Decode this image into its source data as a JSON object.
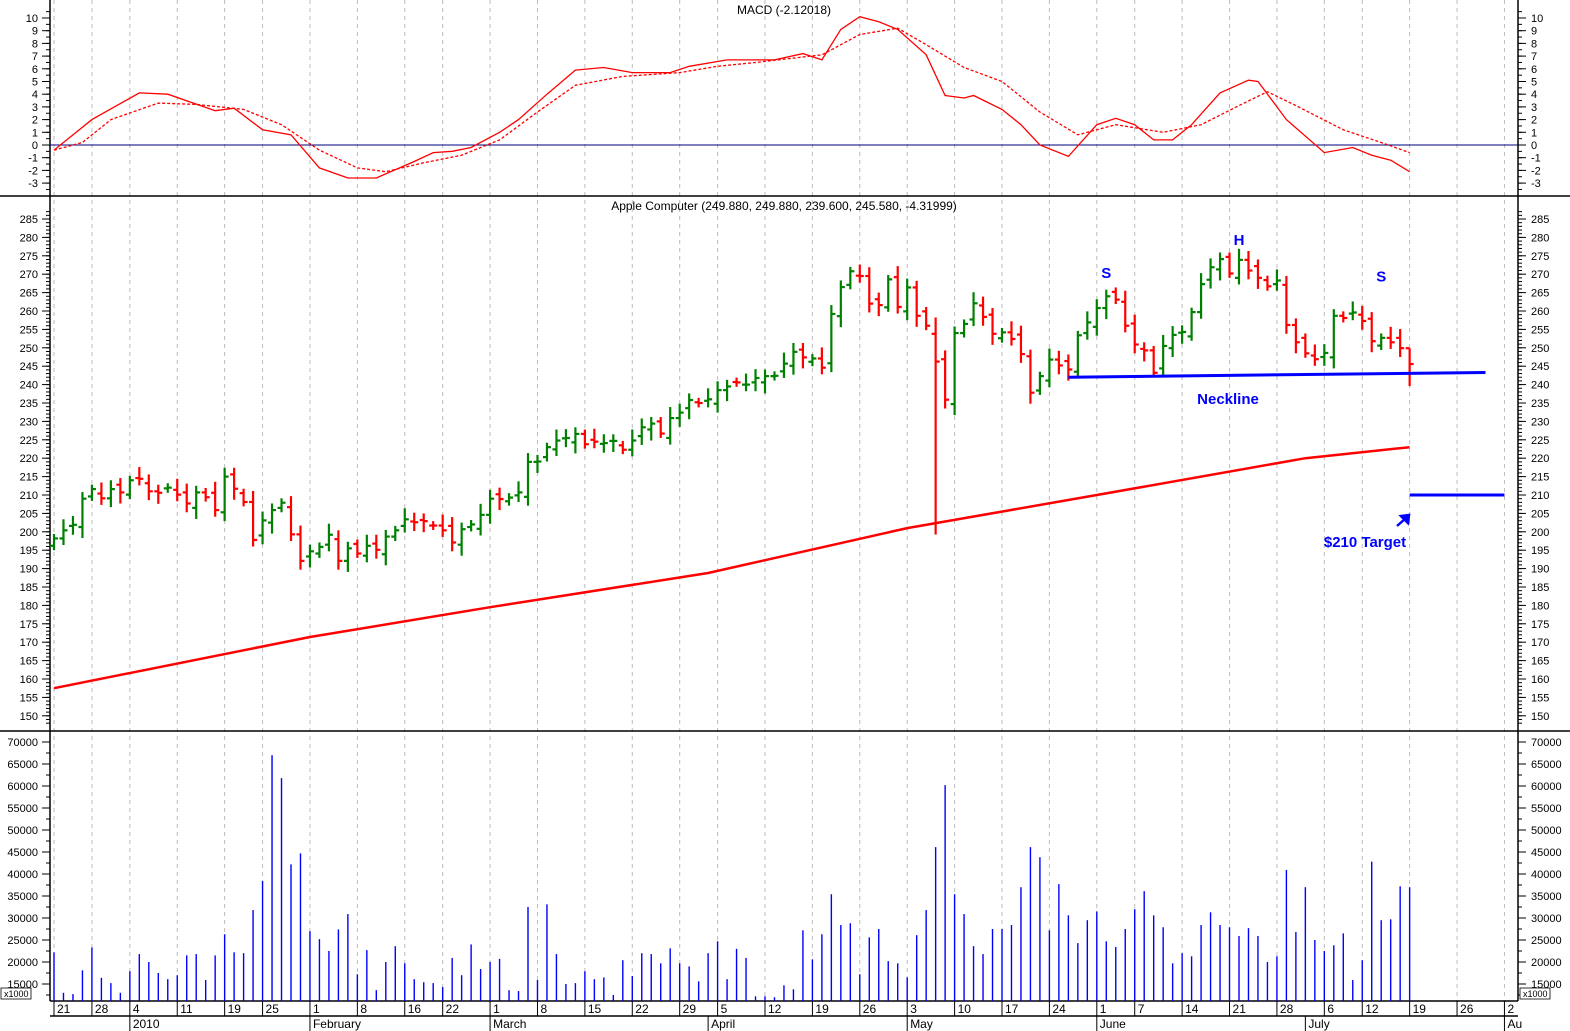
{
  "chart_data": [
    {
      "type": "line",
      "panel": "macd",
      "title": "MACD (-2.12018)",
      "yticks": [
        10,
        9,
        8,
        7,
        6,
        5,
        4,
        3,
        2,
        1,
        0,
        -1,
        -2,
        -3
      ],
      "ylim": [
        -3.6,
        11
      ],
      "zero_line": 0,
      "series": [
        {
          "name": "MACD",
          "style": "solid",
          "color": "#ff0000",
          "points": [
            [
              0,
              -0.4
            ],
            [
              4,
              2
            ],
            [
              9,
              4.1
            ],
            [
              12,
              4
            ],
            [
              17,
              2.7
            ],
            [
              19,
              2.9
            ],
            [
              22,
              1.2
            ],
            [
              25,
              0.8
            ],
            [
              28,
              -1.8
            ],
            [
              31,
              -2.6
            ],
            [
              34,
              -2.6
            ],
            [
              38,
              -1.3
            ],
            [
              40,
              -0.6
            ],
            [
              42,
              -0.5
            ],
            [
              44,
              -0.2
            ],
            [
              47,
              1.0
            ],
            [
              49,
              2
            ],
            [
              52,
              4
            ],
            [
              55,
              5.9
            ],
            [
              58,
              6.1
            ],
            [
              61,
              5.7
            ],
            [
              65,
              5.7
            ],
            [
              67,
              6.2
            ],
            [
              71,
              6.7
            ],
            [
              76,
              6.7
            ],
            [
              79,
              7.2
            ],
            [
              81,
              6.7
            ],
            [
              83,
              9.1
            ],
            [
              85,
              10.1
            ],
            [
              87,
              9.7
            ],
            [
              89,
              9.1
            ],
            [
              92,
              7.1
            ],
            [
              94,
              3.9
            ],
            [
              96,
              3.7
            ],
            [
              97,
              3.9
            ],
            [
              100,
              2.8
            ],
            [
              102,
              1.6
            ],
            [
              104,
              0
            ],
            [
              107,
              -0.9
            ],
            [
              110,
              1.6
            ],
            [
              112,
              2.1
            ],
            [
              114,
              1.6
            ],
            [
              116,
              0.4
            ],
            [
              118,
              0.4
            ],
            [
              120,
              1.6
            ],
            [
              123,
              4.1
            ],
            [
              126,
              5.1
            ],
            [
              127,
              5
            ],
            [
              130,
              2
            ],
            [
              134,
              -0.6
            ],
            [
              137,
              -0.2
            ],
            [
              139,
              -0.8
            ],
            [
              141,
              -1.2
            ],
            [
              143,
              -2.1
            ]
          ]
        },
        {
          "name": "Signal",
          "style": "dashed",
          "color": "#ff0000",
          "points": [
            [
              0,
              -0.4
            ],
            [
              3,
              0.2
            ],
            [
              6,
              2
            ],
            [
              11,
              3.3
            ],
            [
              15,
              3.2
            ],
            [
              20,
              2.8
            ],
            [
              24,
              1.6
            ],
            [
              28,
              -0.4
            ],
            [
              32,
              -1.8
            ],
            [
              35,
              -2.1
            ],
            [
              39,
              -1.4
            ],
            [
              43,
              -0.8
            ],
            [
              47,
              0.4
            ],
            [
              51,
              2.6
            ],
            [
              55,
              4.7
            ],
            [
              60,
              5.4
            ],
            [
              66,
              5.7
            ],
            [
              70,
              6.2
            ],
            [
              74,
              6.5
            ],
            [
              81,
              7.1
            ],
            [
              85,
              8.7
            ],
            [
              89,
              9.2
            ],
            [
              92,
              7.9
            ],
            [
              96,
              6.1
            ],
            [
              100,
              5
            ],
            [
              104,
              2.6
            ],
            [
              108,
              0.8
            ],
            [
              112,
              1.6
            ],
            [
              117,
              1
            ],
            [
              121,
              1.6
            ],
            [
              125,
              3.1
            ],
            [
              128,
              4.2
            ],
            [
              131,
              3.1
            ],
            [
              136,
              1.2
            ],
            [
              140,
              0.2
            ],
            [
              143,
              -0.6
            ]
          ]
        }
      ]
    },
    {
      "type": "ohlc",
      "panel": "price",
      "title": "Apple Computer (249.880, 249.880, 239.600, 245.580, -4.31999)",
      "yticks": [
        285,
        280,
        275,
        270,
        265,
        260,
        255,
        250,
        245,
        240,
        235,
        230,
        225,
        220,
        215,
        210,
        205,
        200,
        195,
        190,
        185,
        180,
        175,
        170,
        165,
        160,
        155,
        150
      ],
      "ylim": [
        148,
        288
      ],
      "up_color": "#008000",
      "down_color": "#ff0000",
      "close": [
        198.2,
        200.4,
        201.9,
        209.0,
        211.6,
        209.1,
        211.6,
        210.7,
        214.0,
        214.4,
        211.0,
        210.6,
        212.0,
        210.1,
        207.7,
        210.7,
        209.4,
        205.9,
        215.0,
        211.7,
        208.1,
        197.8,
        203.1,
        205.9,
        207.9,
        199.3,
        192.1,
        194.7,
        195.9,
        199.2,
        192.1,
        195.5,
        194.1,
        196.2,
        195.1,
        198.7,
        200.4,
        203.4,
        202.6,
        202.9,
        201.7,
        200.4,
        197.1,
        200.7,
        202.0,
        204.6,
        209.0,
        208.9,
        209.3,
        210.7,
        219.0,
        219.1,
        223.0,
        224.8,
        225.5,
        226.6,
        223.8,
        224.5,
        224.1,
        224.7,
        222.3,
        224.8,
        228.4,
        229.4,
        226.7,
        230.9,
        232.4,
        235.8,
        235.0,
        236.0,
        238.5,
        239.5,
        240.6,
        240.0,
        241.8,
        242.3,
        242.4,
        245.7,
        248.9,
        247.4,
        247.1,
        244.6,
        259.2,
        266.5,
        270.8,
        269.5,
        262.0,
        261.6,
        268.6,
        261.1,
        266.4,
        258.7,
        256.0,
        246.3,
        235.9,
        254.0,
        256.5,
        262.1,
        258.4,
        253.8,
        254.2,
        252.4,
        248.3,
        237.8,
        242.3,
        246.8,
        245.2,
        244.1,
        253.4,
        256.9,
        260.8,
        264.0,
        263.1,
        256.0,
        250.9,
        249.3,
        243.2,
        250.5,
        253.5,
        254.3,
        259.7,
        267.3,
        271.9,
        274.1,
        270.2,
        273.9,
        271.0,
        269.0,
        266.7,
        268.3,
        256.2,
        251.5,
        248.5,
        246.9,
        248.6,
        258.7,
        258.1,
        259.6,
        257.3,
        251.8,
        252.7,
        251.5,
        249.9,
        245.6
      ],
      "ohlc_overrides": {
        "93": [
          253.8,
          258.25,
          199.25,
          246.25
        ],
        "143": [
          249.88,
          249.88,
          239.6,
          245.58
        ]
      },
      "moving_average": {
        "name": "200-day MA",
        "color": "#ff0000",
        "points": [
          [
            0,
            157.5
          ],
          [
            27,
            171.4
          ],
          [
            46,
            179.5
          ],
          [
            69,
            188.8
          ],
          [
            90,
            201
          ],
          [
            110,
            210
          ],
          [
            132,
            220
          ],
          [
            143,
            223
          ]
        ]
      },
      "neckline": {
        "color": "#0000ff",
        "points": [
          [
            107,
            242
          ],
          [
            151,
            243.3
          ]
        ],
        "label": "Neckline"
      },
      "target": {
        "color": "#0000ff",
        "value": 210,
        "from": 143,
        "to": 153,
        "label": "$210 Target"
      },
      "annotations": [
        {
          "text": "S",
          "day": 111,
          "price": 269
        },
        {
          "text": "H",
          "day": 125,
          "price": 278
        },
        {
          "text": "S",
          "day": 140,
          "price": 268
        }
      ]
    },
    {
      "type": "bar",
      "panel": "volume",
      "yticks": [
        70000,
        65000,
        60000,
        55000,
        50000,
        45000,
        40000,
        35000,
        30000,
        25000,
        20000,
        15000
      ],
      "ylim": [
        12000,
        70000
      ],
      "unit_label": "x1000",
      "color": "#0000ff",
      "values": [
        22200,
        13000,
        12700,
        18100,
        23300,
        16400,
        15200,
        13000,
        17900,
        21800,
        20000,
        17500,
        16100,
        17000,
        21500,
        21800,
        15900,
        21500,
        26300,
        22200,
        22000,
        31800,
        38400,
        67000,
        61800,
        42200,
        44700,
        27000,
        25200,
        22500,
        27400,
        30900,
        17200,
        22700,
        13600,
        20000,
        23600,
        19700,
        16100,
        15400,
        15200,
        14300,
        20900,
        17000,
        24000,
        18400,
        20000,
        20700,
        13600,
        13400,
        32500,
        15900,
        33100,
        21800,
        15000,
        15200,
        17900,
        16100,
        16500,
        12500,
        20400,
        16800,
        22000,
        21800,
        19700,
        23100,
        19700,
        19000,
        15600,
        22000,
        24700,
        16100,
        23000,
        20900,
        12200,
        12200,
        12000,
        14700,
        13800,
        27200,
        20600,
        26300,
        35400,
        28400,
        28800,
        17200,
        25600,
        27500,
        20200,
        19700,
        16500,
        26100,
        31800,
        46100,
        60200,
        35400,
        30900,
        23600,
        21800,
        27500,
        27500,
        28400,
        37000,
        46100,
        43800,
        27200,
        37700,
        30600,
        24300,
        29500,
        31500,
        24700,
        23400,
        27500,
        32000,
        36100,
        30600,
        27900,
        19700,
        22000,
        21300,
        28400,
        31300,
        28400,
        27900,
        25900,
        27700,
        25900,
        20000,
        21300,
        40900,
        26800,
        37000,
        25000,
        22500,
        23800,
        26500,
        15900,
        20400,
        42800,
        29500,
        29700,
        37200,
        37000
      ]
    }
  ],
  "x_axis": {
    "day_labels": [
      [
        "21",
        0
      ],
      [
        "28",
        4
      ],
      [
        "4",
        8
      ],
      [
        "11",
        13
      ],
      [
        "19",
        18
      ],
      [
        "25",
        22
      ],
      [
        "1",
        27
      ],
      [
        "8",
        32
      ],
      [
        "16",
        37
      ],
      [
        "22",
        41
      ],
      [
        "1",
        46
      ],
      [
        "8",
        51
      ],
      [
        "15",
        56
      ],
      [
        "22",
        61
      ],
      [
        "29",
        66
      ],
      [
        "5",
        70
      ],
      [
        "12",
        75
      ],
      [
        "19",
        80
      ],
      [
        "26",
        85
      ],
      [
        "3",
        90
      ],
      [
        "10",
        95
      ],
      [
        "17",
        100
      ],
      [
        "24",
        105
      ],
      [
        "1",
        110
      ],
      [
        "7",
        114
      ],
      [
        "14",
        119
      ],
      [
        "21",
        124
      ],
      [
        "28",
        129
      ],
      [
        "6",
        134
      ],
      [
        "12",
        138
      ],
      [
        "19",
        143
      ],
      [
        "26",
        148
      ],
      [
        "2",
        153
      ]
    ],
    "month_labels": [
      [
        "2010",
        8
      ],
      [
        "February",
        27
      ],
      [
        "March",
        46
      ],
      [
        "April",
        69
      ],
      [
        "May",
        90
      ],
      [
        "June",
        110
      ],
      [
        "July",
        132
      ],
      [
        "Au",
        153
      ]
    ]
  }
}
